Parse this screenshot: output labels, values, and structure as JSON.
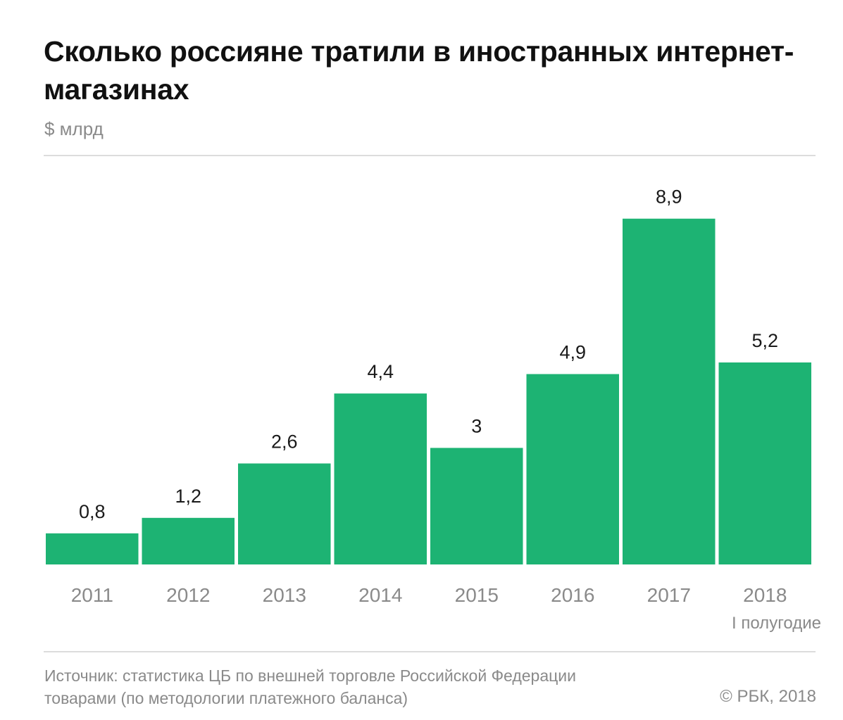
{
  "title": "Сколько россияне тратили в иностранных интернет-магазинах",
  "unit_label": "$ млрд",
  "source": "Источник: статистика ЦБ по внешней торговле Российской Федерации товарами (по методологии платежного баланса)",
  "copyright": "© РБК, 2018",
  "colors": {
    "bar": "#1db373",
    "axis_text": "#8a8a8a",
    "value_text": "#1a1a1a"
  },
  "chart_data": {
    "type": "bar",
    "title": "Сколько россияне тратили в иностранных интернет-магазинах",
    "ylabel": "$ млрд",
    "xlabel": "",
    "categories": [
      "2011",
      "2012",
      "2013",
      "2014",
      "2015",
      "2016",
      "2017",
      "2018"
    ],
    "category_notes": [
      "",
      "",
      "",
      "",
      "",
      "",
      "",
      "I полугодие"
    ],
    "values": [
      0.8,
      1.2,
      2.6,
      4.4,
      3,
      4.9,
      8.9,
      5.2
    ],
    "value_labels": [
      "0,8",
      "1,2",
      "2,6",
      "4,4",
      "3",
      "4,9",
      "8,9",
      "5,2"
    ],
    "ylim": [
      0,
      10
    ],
    "grid": false,
    "legend": "none"
  }
}
